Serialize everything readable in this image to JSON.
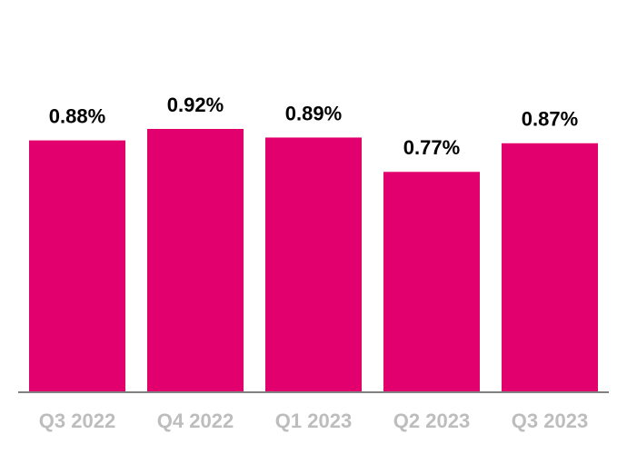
{
  "chart_data": {
    "type": "bar",
    "categories": [
      "Q3 2022",
      "Q4 2022",
      "Q1 2023",
      "Q2 2023",
      "Q3 2023"
    ],
    "values": [
      0.88,
      0.92,
      0.89,
      0.77,
      0.87
    ],
    "value_labels": [
      "0.88%",
      "0.92%",
      "0.89%",
      "0.77%",
      "0.87%"
    ],
    "color": "#e2006f"
  }
}
